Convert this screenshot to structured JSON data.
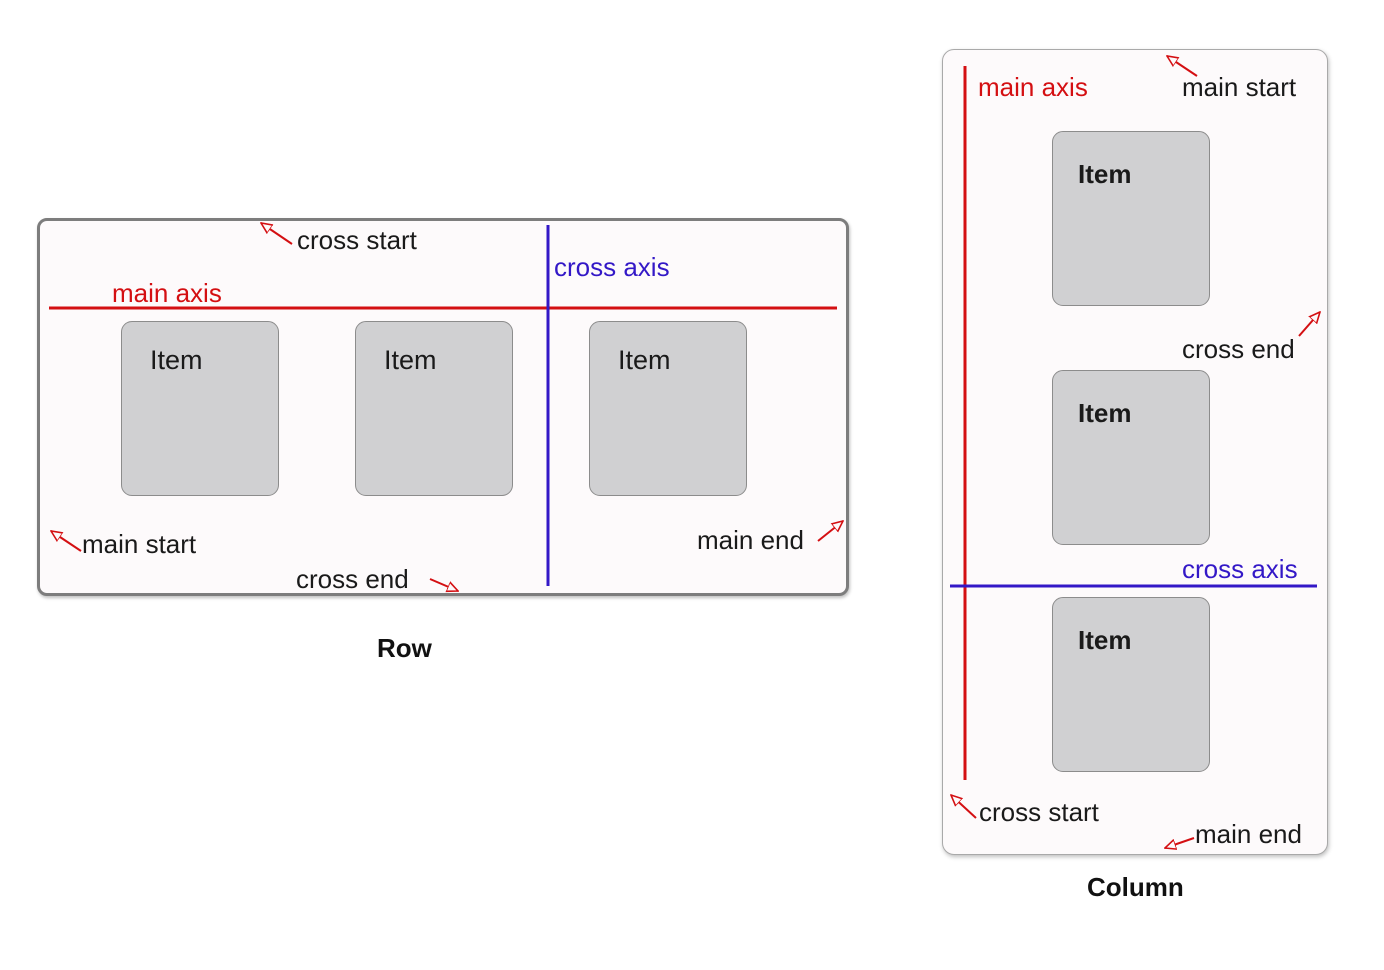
{
  "row_diagram": {
    "caption": "Row",
    "items": [
      "Item",
      "Item",
      "Item"
    ],
    "labels": {
      "main_axis": "main axis",
      "cross_axis": "cross axis",
      "cross_start": "cross start",
      "cross_end": "cross end",
      "main_start": "main start",
      "main_end": "main end"
    }
  },
  "column_diagram": {
    "caption": "Column",
    "items": [
      "Item",
      "Item",
      "Item"
    ],
    "labels": {
      "main_axis": "main axis",
      "cross_axis": "cross axis",
      "main_start": "main start",
      "cross_end": "cross end",
      "cross_start": "cross start",
      "main_end": "main end"
    }
  },
  "colors": {
    "main_axis": "#d40f12",
    "cross_axis": "#3318c7",
    "arrow": "#d40f12",
    "item_fill": "#d0d0d2",
    "container_fill": "#fdfafb"
  }
}
